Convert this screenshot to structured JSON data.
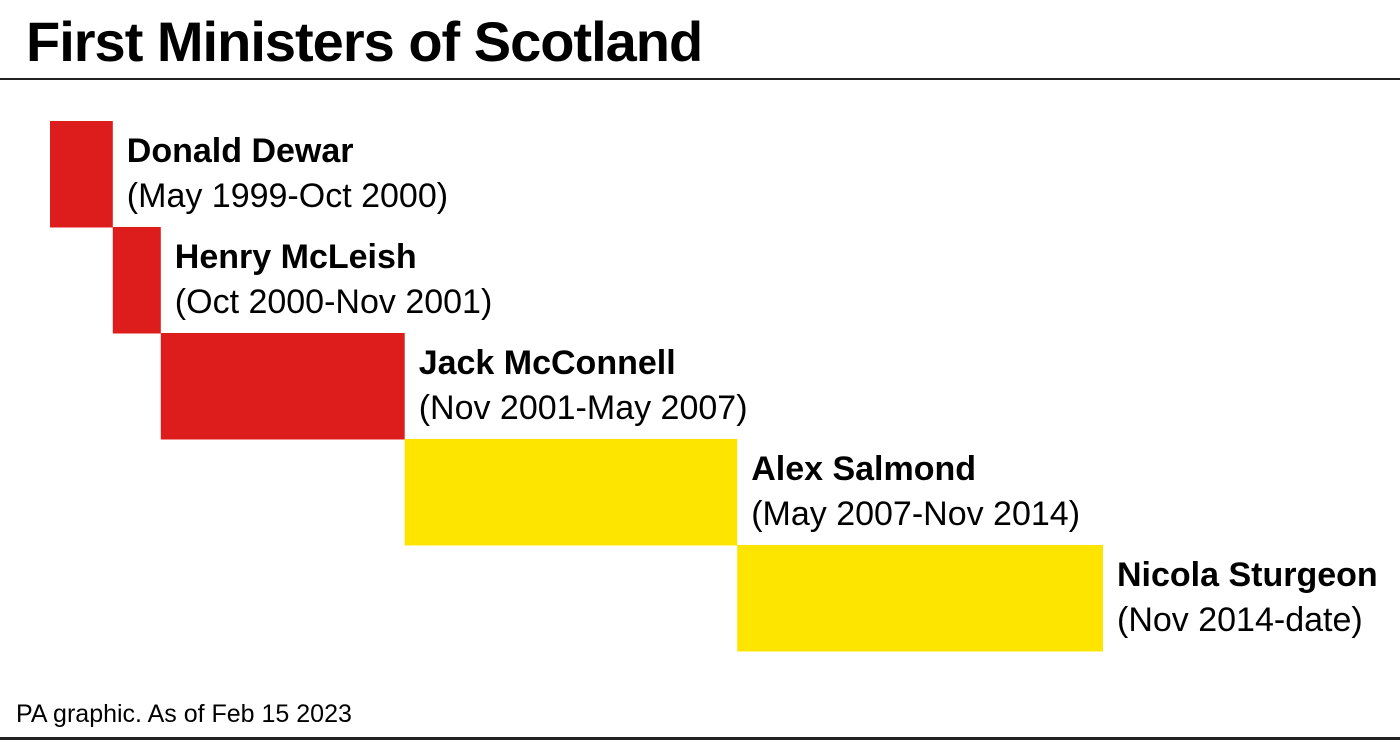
{
  "title": "First Ministers of Scotland",
  "source": "PA graphic. As of Feb 15 2023",
  "colors": {
    "labour": "#dd1c1c",
    "snp": "#fde500"
  },
  "chart_data": {
    "type": "timeline",
    "x_start": "1999-05",
    "x_end": "2023-02",
    "entries": [
      {
        "name": "Donald Dewar",
        "period": "(May 1999-Oct 2000)",
        "start": "1999-05",
        "end": "2000-10",
        "color": "#dd1c1c"
      },
      {
        "name": "Henry McLeish",
        "period": "(Oct 2000-Nov 2001)",
        "start": "2000-10",
        "end": "2001-11",
        "color": "#dd1c1c"
      },
      {
        "name": "Jack McConnell",
        "period": "(Nov 2001-May 2007)",
        "start": "2001-11",
        "end": "2007-05",
        "color": "#dd1c1c"
      },
      {
        "name": "Alex Salmond",
        "period": "(May 2007-Nov 2014)",
        "start": "2007-05",
        "end": "2014-11",
        "color": "#fde500"
      },
      {
        "name": "Nicola Sturgeon",
        "period": "(Nov 2014-date)",
        "start": "2014-11",
        "end": "2023-02",
        "color": "#fde500"
      }
    ]
  }
}
